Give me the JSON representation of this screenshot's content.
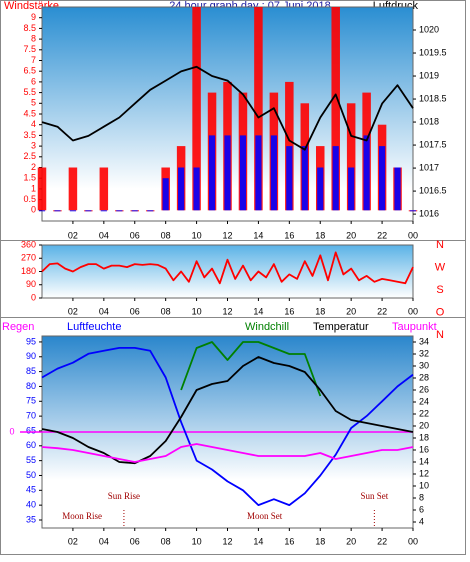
{
  "chart_data": [
    {
      "type": "line",
      "title": "24 hour graph day : 07 Juni 2018",
      "ylabel": "Windstärke",
      "y2label": "Luftdruck",
      "x": [
        0,
        1,
        2,
        3,
        4,
        5,
        6,
        7,
        8,
        9,
        10,
        11,
        12,
        13,
        14,
        15,
        16,
        17,
        18,
        19,
        20,
        21,
        22,
        23,
        24
      ],
      "xlim": [
        0,
        24
      ],
      "xticks": [
        {
          "value": 2,
          "label": "02"
        },
        {
          "value": 4,
          "label": "04"
        },
        {
          "value": 6,
          "label": "06"
        },
        {
          "value": 8,
          "label": "08"
        },
        10,
        12,
        14,
        16,
        18,
        20,
        22,
        {
          "value": 24,
          "label": "00"
        }
      ],
      "ylim": [
        -0.5,
        9.5
      ],
      "yticks": [
        0,
        0.5,
        1,
        1.5,
        2,
        2.5,
        3,
        3.5,
        4,
        4.5,
        5,
        5.5,
        6,
        6.5,
        7,
        7.5,
        8,
        8.5,
        9
      ],
      "y2lim": [
        1015.85,
        1020.5
      ],
      "y2ticks": [
        1016,
        1016.5,
        1017,
        1017.5,
        1018,
        1018.5,
        1019,
        1019.5,
        1020
      ],
      "series": [
        {
          "type": "bar",
          "color": "#ff0000",
          "values": [
            2,
            0,
            2,
            0,
            2,
            0,
            0,
            0,
            2,
            3,
            9.5,
            5.5,
            6,
            5.5,
            9.5,
            5.5,
            6,
            5,
            3,
            9.5,
            5,
            5.5,
            4,
            2,
            0
          ]
        },
        {
          "type": "bar",
          "color": "#0000ff",
          "values": [
            0,
            0,
            0,
            0,
            0,
            0,
            0,
            0,
            1.5,
            2,
            2,
            3.5,
            3.5,
            3.5,
            3.5,
            3.5,
            3,
            3,
            2,
            3,
            2,
            3.5,
            3,
            2,
            0
          ]
        },
        {
          "type": "line",
          "axis": "y2",
          "color": "#000000",
          "values": [
            1018,
            1017.9,
            1017.6,
            1017.7,
            1017.9,
            1018.1,
            1018.4,
            1018.7,
            1018.9,
            1019.1,
            1019.2,
            1019,
            1018.9,
            1018.6,
            1018.1,
            1018.3,
            1017.6,
            1017.4,
            1018.1,
            1018.6,
            1017.7,
            1017.6,
            1018.4,
            1018.8,
            1018.3
          ]
        }
      ]
    },
    {
      "type": "line",
      "x": [
        0,
        0.5,
        1,
        1.5,
        2,
        2.5,
        3,
        3.5,
        4,
        4.5,
        5,
        5.5,
        6,
        6.5,
        7,
        7.5,
        8,
        8.5,
        9,
        9.5,
        10,
        10.5,
        11,
        11.5,
        12,
        12.5,
        13,
        13.5,
        14,
        14.5,
        15,
        15.5,
        16,
        16.5,
        17,
        17.5,
        18,
        18.5,
        19,
        19.5,
        20,
        20.5,
        21,
        21.5,
        22,
        22.5,
        23,
        23.5,
        24
      ],
      "xlim": [
        0,
        24
      ],
      "xticks": [
        {
          "value": 2,
          "label": "02"
        },
        {
          "value": 4,
          "label": "04"
        },
        {
          "value": 6,
          "label": "06"
        },
        {
          "value": 8,
          "label": "08"
        },
        10,
        12,
        14,
        16,
        18,
        20,
        22,
        {
          "value": 24,
          "label": "00"
        }
      ],
      "ylim": [
        0,
        360
      ],
      "yticks": [
        0,
        90,
        180,
        270,
        360
      ],
      "compass": [
        "N",
        "W",
        "S",
        "O",
        "N"
      ],
      "series": [
        {
          "type": "line",
          "color": "#ff0000",
          "values": [
            180,
            230,
            235,
            200,
            180,
            210,
            230,
            230,
            200,
            220,
            220,
            210,
            230,
            225,
            230,
            225,
            200,
            120,
            180,
            110,
            250,
            140,
            200,
            100,
            260,
            130,
            220,
            120,
            180,
            140,
            230,
            110,
            160,
            130,
            250,
            150,
            290,
            120,
            310,
            160,
            200,
            120,
            150,
            110,
            130,
            120,
            110,
            100,
            210
          ]
        }
      ]
    },
    {
      "type": "line",
      "y3label": "Regen",
      "y3lim": [
        -1,
        1
      ],
      "y3ticks": [
        0
      ],
      "x": [
        0,
        1,
        2,
        3,
        4,
        5,
        6,
        7,
        8,
        9,
        10,
        11,
        12,
        13,
        14,
        15,
        16,
        17,
        18,
        19,
        20,
        21,
        22,
        23,
        24
      ],
      "xlim": [
        0,
        24
      ],
      "xticks": [
        {
          "value": 2,
          "label": "02"
        },
        {
          "value": 4,
          "label": "04"
        },
        {
          "value": 6,
          "label": "06"
        },
        {
          "value": 8,
          "label": "08"
        },
        10,
        12,
        14,
        16,
        18,
        20,
        22,
        {
          "value": 24,
          "label": "00"
        }
      ],
      "ylim": [
        32.3,
        97
      ],
      "yticks": [
        35,
        40,
        45,
        50,
        55,
        60,
        65,
        70,
        75,
        80,
        85,
        90,
        95
      ],
      "y2lim": [
        3,
        35
      ],
      "y2ticks": [
        4,
        6,
        8,
        10,
        12,
        14,
        16,
        18,
        20,
        22,
        24,
        26,
        28,
        30,
        32,
        34
      ],
      "sun_events": [
        {
          "text": "Sun Rise",
          "x": 5.3
        },
        {
          "text": "Sun Set",
          "x": 21.5
        }
      ],
      "moon_events": [
        {
          "text": "Moon Rise",
          "x": 2.6
        },
        {
          "text": "Moon Set",
          "x": 14.4
        }
      ],
      "series": [
        {
          "name": "Luftfeuchte",
          "type": "line",
          "color": "#0000ff",
          "values": [
            83,
            86,
            88,
            91,
            92,
            93,
            93,
            92,
            83,
            68,
            55,
            52,
            48,
            45,
            40,
            42,
            40,
            44,
            50,
            57,
            66,
            70,
            75,
            80,
            84
          ]
        },
        {
          "name": "Windchill",
          "type": "line",
          "axis": "y2",
          "color": "#008000",
          "values": [
            null,
            null,
            null,
            null,
            null,
            null,
            null,
            null,
            null,
            26,
            33,
            34,
            31,
            34,
            34,
            33,
            32,
            32,
            25,
            null,
            null,
            null,
            null,
            null,
            null
          ]
        },
        {
          "name": "Temperatur",
          "type": "line",
          "axis": "y2",
          "color": "#000000",
          "values": [
            19.5,
            19,
            18,
            16.5,
            15.5,
            14,
            13.8,
            15,
            17.5,
            21.5,
            26,
            27,
            27.5,
            30,
            31.5,
            30.5,
            30,
            29,
            26,
            22.5,
            21,
            20.5,
            20,
            19.5,
            19
          ]
        },
        {
          "name": "Taupunkt",
          "type": "line",
          "axis": "y2",
          "color": "#ff00ff",
          "values": [
            16.5,
            16.3,
            16,
            15.5,
            15,
            14.5,
            14,
            14.5,
            15,
            16.5,
            17,
            16.5,
            16,
            15.5,
            15,
            15,
            15,
            15,
            15.5,
            14.5,
            15,
            15.5,
            16,
            16,
            16.5
          ]
        }
      ]
    }
  ]
}
